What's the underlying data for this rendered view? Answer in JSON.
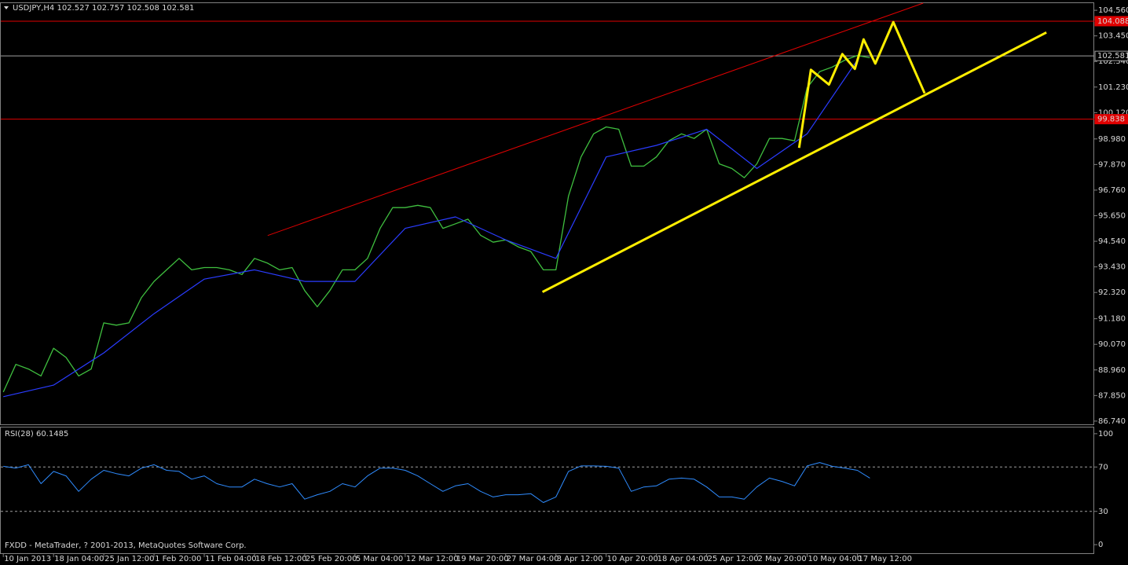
{
  "footer": "FXDD - MetaTrader, ? 2001-2013, MetaQuotes Software Corp.",
  "chart_data": [
    {
      "type": "line",
      "title": "USDJPY,H4  102.527 102.757 102.508 102.581",
      "xlim": [
        -2,
        868.6
      ],
      "ylim": [
        86.6,
        104.87
      ],
      "xticks": [
        {
          "value": 0,
          "label": "10 Jan 2013"
        },
        {
          "value": 40,
          "label": "18 Jan 04:00"
        },
        {
          "value": 80,
          "label": "25 Jan 12:00"
        },
        {
          "value": 120,
          "label": "1 Feb 20:00"
        },
        {
          "value": 160,
          "label": "11 Feb 04:00"
        },
        {
          "value": 200,
          "label": "18 Feb 12:00"
        },
        {
          "value": 240,
          "label": "25 Feb 20:00"
        },
        {
          "value": 280,
          "label": "5 Mar 04:00"
        },
        {
          "value": 320,
          "label": "12 Mar 12:00"
        },
        {
          "value": 360,
          "label": "19 Mar 20:00"
        },
        {
          "value": 400,
          "label": "27 Mar 04:00"
        },
        {
          "value": 440,
          "label": "3 Apr 12:00"
        },
        {
          "value": 480,
          "label": "10 Apr 20:00"
        },
        {
          "value": 520,
          "label": "18 Apr 04:00"
        },
        {
          "value": 560,
          "label": "25 Apr 12:00"
        },
        {
          "value": 600,
          "label": "2 May 20:00"
        },
        {
          "value": 640,
          "label": "10 May 04:00"
        },
        {
          "value": 680,
          "label": "17 May 12:00"
        }
      ],
      "yticks": [
        {
          "value": 104.56,
          "label": "104.560"
        },
        {
          "value": 103.45,
          "label": "103.450"
        },
        {
          "value": 102.34,
          "label": "102.340"
        },
        {
          "value": 101.23,
          "label": "101.230"
        },
        {
          "value": 100.12,
          "label": "100.120"
        },
        {
          "value": 98.98,
          "label": "98.980"
        },
        {
          "value": 97.87,
          "label": "97.870"
        },
        {
          "value": 96.76,
          "label": "96.760"
        },
        {
          "value": 95.65,
          "label": "95.650"
        },
        {
          "value": 94.54,
          "label": "94.540"
        },
        {
          "value": 93.43,
          "label": "93.430"
        },
        {
          "value": 92.32,
          "label": "92.320"
        },
        {
          "value": 91.18,
          "label": "91.180"
        },
        {
          "value": 90.07,
          "label": "90.070"
        },
        {
          "value": 88.96,
          "label": "88.960"
        },
        {
          "value": 87.85,
          "label": "87.850"
        },
        {
          "value": 86.74,
          "label": "86.740"
        }
      ],
      "series": [
        {
          "color": "#3fbf3f",
          "width": 1.3,
          "x": [
            0,
            10,
            20,
            30,
            40,
            50,
            60,
            70,
            80,
            90,
            100,
            110,
            120,
            130,
            140,
            150,
            160,
            170,
            180,
            190,
            200,
            210,
            220,
            230,
            240,
            250,
            260,
            270,
            280,
            290,
            300,
            310,
            320,
            330,
            340,
            350,
            360,
            370,
            380,
            390,
            400,
            410,
            420,
            430,
            440,
            450,
            460,
            470,
            480,
            490,
            500,
            510,
            520,
            530,
            540,
            550,
            560,
            570,
            580,
            590,
            600,
            610,
            620,
            630,
            640,
            650,
            660,
            670,
            680,
            690
          ],
          "values": [
            88.0,
            89.2,
            89.0,
            88.7,
            89.9,
            89.5,
            88.7,
            89.0,
            91.0,
            90.9,
            91.0,
            92.1,
            92.8,
            93.3,
            93.8,
            93.3,
            93.4,
            93.4,
            93.3,
            93.1,
            93.8,
            93.6,
            93.3,
            93.4,
            92.4,
            91.7,
            92.4,
            93.3,
            93.3,
            93.8,
            95.1,
            96.0,
            96.0,
            96.1,
            96.0,
            95.1,
            95.3,
            95.5,
            94.8,
            94.5,
            94.6,
            94.3,
            94.1,
            93.3,
            93.3,
            96.5,
            98.2,
            99.2,
            99.5,
            99.4,
            97.8,
            97.8,
            98.2,
            98.9,
            99.2,
            99.0,
            99.4,
            97.9,
            97.7,
            97.3,
            97.9,
            99.0,
            99.0,
            98.9,
            101.2,
            101.9,
            102.1,
            102.4,
            102.6,
            102.5
          ]
        },
        {
          "color": "#2a3cff",
          "width": 1.2,
          "x": [
            0,
            40,
            80,
            120,
            160,
            200,
            240,
            280,
            320,
            360,
            400,
            440,
            480,
            520,
            560,
            600,
            640,
            680
          ],
          "values": [
            87.8,
            88.3,
            89.7,
            91.4,
            92.9,
            93.3,
            92.8,
            92.8,
            95.1,
            95.6,
            94.6,
            93.8,
            98.2,
            98.7,
            99.4,
            97.7,
            99.2,
            102.4
          ]
        }
      ],
      "lines": [
        {
          "color": "#e00000",
          "width": 1,
          "x": [
            210.5,
            732.4
          ],
          "y": [
            94.79,
            104.87
          ]
        },
        {
          "color": "#ffee00",
          "width": 3,
          "x": [
            429.3,
            830.5
          ],
          "y": [
            92.34,
            103.6
          ]
        },
        {
          "color": "#ffee00",
          "width": 3,
          "x": [
            633.6,
            643,
            657.4,
            668,
            678,
            685,
            694.3,
            708.6,
            733.6
          ],
          "y": [
            98.59,
            101.98,
            101.34,
            102.66,
            102.02,
            103.3,
            102.25,
            104.05,
            100.96
          ]
        }
      ],
      "price_lines": [
        {
          "value": 104.088,
          "color": "#e00000"
        },
        {
          "value": 102.581,
          "color": "#a0a0a0"
        },
        {
          "value": 99.838,
          "color": "#e00000"
        }
      ]
    },
    {
      "type": "line",
      "title": "RSI(28) 60.1485",
      "xlim": [
        -2,
        868.6
      ],
      "ylim": [
        -7.7,
        105.6
      ],
      "yticks": [
        100,
        70,
        30,
        0
      ],
      "levels": [
        70,
        30
      ],
      "series": [
        {
          "color": "#2f8cff",
          "width": 1,
          "x": [
            0,
            10,
            20,
            30,
            40,
            50,
            60,
            70,
            80,
            90,
            100,
            110,
            120,
            130,
            140,
            150,
            160,
            170,
            180,
            190,
            200,
            210,
            220,
            230,
            240,
            250,
            260,
            270,
            280,
            290,
            300,
            310,
            320,
            330,
            340,
            350,
            360,
            370,
            380,
            390,
            400,
            410,
            420,
            430,
            440,
            450,
            460,
            470,
            480,
            490,
            500,
            510,
            520,
            530,
            540,
            550,
            560,
            570,
            580,
            590,
            600,
            610,
            620,
            630,
            640,
            650,
            660,
            670,
            680,
            690
          ],
          "values": [
            70.6,
            69,
            72,
            55,
            66,
            62,
            48,
            59,
            67,
            64,
            62,
            69,
            72,
            67,
            66,
            59,
            62,
            55,
            52,
            52,
            59,
            55,
            52,
            55,
            41,
            45,
            48,
            55,
            52,
            62,
            69,
            69,
            67,
            62,
            55,
            48,
            53,
            55,
            48,
            43,
            45,
            45,
            46,
            38,
            43,
            66,
            71,
            71,
            70.6,
            69,
            48,
            52,
            53,
            59,
            60,
            59,
            52,
            43,
            43,
            41,
            52,
            60,
            57,
            53,
            71,
            74,
            70.6,
            69,
            67,
            60
          ]
        }
      ]
    }
  ]
}
